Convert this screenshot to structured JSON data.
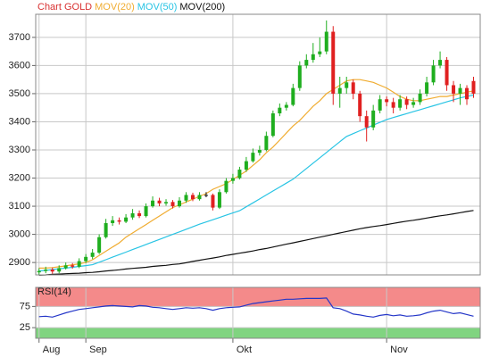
{
  "chart_data": [
    {
      "type": "candlestick",
      "xlim": [
        -0.5,
        66
      ],
      "xticks": [
        {
          "value": 0,
          "label": "Aug"
        },
        {
          "value": 7,
          "label": "Sep"
        },
        {
          "value": 29,
          "label": "Okt"
        },
        {
          "value": 52,
          "label": "Nov"
        }
      ],
      "ylim": [
        2856,
        3782
      ],
      "yticks": [
        2900,
        3000,
        3100,
        3200,
        3300,
        3400,
        3500,
        3600,
        3700
      ],
      "grid": true,
      "up_color": "#1fae1f",
      "down_color": "#e02020",
      "series": [
        {
          "name": "Chart GOLD",
          "color": "#d83030",
          "open": [
            2865,
            2870,
            2875,
            2868,
            2880,
            2890,
            2885,
            2905,
            2920,
            2935,
            2990,
            3040,
            3050,
            3045,
            3060,
            3075,
            3065,
            3100,
            3120,
            3110,
            3115,
            3100,
            3120,
            3140,
            3125,
            3140,
            3140,
            3095,
            3150,
            3190,
            3200,
            3230,
            3260,
            3290,
            3300,
            3350,
            3430,
            3450,
            3460,
            3520,
            3600,
            3620,
            3640,
            3650,
            3720,
            3500,
            3520,
            3540,
            3500,
            3420,
            3380,
            3440,
            3480,
            3470,
            3450,
            3480,
            3460,
            3470,
            3500,
            3540,
            3600,
            3620,
            3530,
            3500,
            3520,
            3545
          ],
          "high": [
            2880,
            2885,
            2882,
            2890,
            2900,
            2898,
            2915,
            2930,
            2948,
            3000,
            3055,
            3065,
            3060,
            3072,
            3090,
            3085,
            3110,
            3135,
            3130,
            3125,
            3122,
            3132,
            3150,
            3148,
            3150,
            3150,
            3145,
            3160,
            3200,
            3215,
            3240,
            3275,
            3305,
            3315,
            3365,
            3440,
            3465,
            3470,
            3535,
            3615,
            3640,
            3680,
            3700,
            3760,
            3740,
            3560,
            3560,
            3550,
            3510,
            3440,
            3460,
            3495,
            3490,
            3485,
            3495,
            3490,
            3485,
            3515,
            3560,
            3620,
            3650,
            3630,
            3545,
            3535,
            3530,
            3560
          ],
          "low": [
            2855,
            2862,
            2860,
            2862,
            2875,
            2878,
            2880,
            2898,
            2912,
            2930,
            2985,
            3030,
            3035,
            3040,
            3052,
            3058,
            3060,
            3095,
            3100,
            3102,
            3092,
            3095,
            3112,
            3118,
            3120,
            3132,
            3085,
            3090,
            3145,
            3180,
            3195,
            3222,
            3255,
            3280,
            3295,
            3345,
            3420,
            3440,
            3455,
            3510,
            3590,
            3610,
            3630,
            3640,
            3460,
            3450,
            3500,
            3480,
            3400,
            3330,
            3370,
            3430,
            3455,
            3430,
            3440,
            3445,
            3450,
            3460,
            3490,
            3530,
            3590,
            3510,
            3470,
            3460,
            3460,
            3485
          ],
          "close": [
            2870,
            2875,
            2868,
            2880,
            2890,
            2885,
            2905,
            2920,
            2935,
            2990,
            3040,
            3050,
            3045,
            3060,
            3075,
            3065,
            3100,
            3120,
            3110,
            3115,
            3100,
            3120,
            3140,
            3125,
            3140,
            3140,
            3095,
            3150,
            3190,
            3200,
            3230,
            3260,
            3290,
            3300,
            3350,
            3430,
            3450,
            3460,
            3520,
            3600,
            3620,
            3640,
            3650,
            3720,
            3500,
            3520,
            3540,
            3500,
            3420,
            3380,
            3440,
            3480,
            3470,
            3450,
            3480,
            3460,
            3470,
            3500,
            3540,
            3600,
            3620,
            3530,
            3500,
            3520,
            3480,
            3500
          ]
        }
      ],
      "overlays": [
        {
          "name": "MOV(20)",
          "color": "#f0ac30",
          "values": [
            2880,
            2880,
            2882,
            2885,
            2888,
            2892,
            2895,
            2900,
            2910,
            2925,
            2940,
            2955,
            2970,
            2990,
            3005,
            3020,
            3035,
            3050,
            3065,
            3080,
            3095,
            3105,
            3115,
            3125,
            3135,
            3145,
            3160,
            3170,
            3180,
            3195,
            3210,
            3225,
            3245,
            3265,
            3290,
            3310,
            3335,
            3360,
            3385,
            3405,
            3430,
            3455,
            3475,
            3500,
            3515,
            3530,
            3545,
            3550,
            3550,
            3545,
            3540,
            3530,
            3520,
            3505,
            3490,
            3480,
            3475,
            3475,
            3480,
            3485,
            3490,
            3490,
            3495,
            3500,
            3505,
            3510
          ]
        },
        {
          "name": "MOV(50)",
          "color": "#28c4e4",
          "values": [
            2870,
            2872,
            2875,
            2878,
            2880,
            2883,
            2886,
            2889,
            2892,
            2901,
            2910,
            2919,
            2928,
            2937,
            2946,
            2955,
            2964,
            2973,
            2982,
            2991,
            3000,
            3009,
            3018,
            3027,
            3036,
            3044,
            3052,
            3060,
            3068,
            3076,
            3084,
            3098,
            3112,
            3126,
            3140,
            3154,
            3168,
            3182,
            3196,
            3215,
            3234,
            3253,
            3272,
            3291,
            3310,
            3329,
            3348,
            3358,
            3368,
            3378,
            3388,
            3398,
            3408,
            3415,
            3422,
            3429,
            3436,
            3443,
            3450,
            3457,
            3464,
            3471,
            3478,
            3485,
            3490,
            3495
          ]
        },
        {
          "name": "MOV(200)",
          "color": "#111111",
          "values": [
            2855,
            2856,
            2858,
            2859,
            2860,
            2861,
            2862,
            2864,
            2865,
            2867,
            2870,
            2872,
            2874,
            2877,
            2879,
            2881,
            2883,
            2886,
            2888,
            2890,
            2893,
            2895,
            2899,
            2904,
            2908,
            2912,
            2916,
            2920,
            2925,
            2929,
            2933,
            2937,
            2941,
            2946,
            2950,
            2955,
            2960,
            2965,
            2970,
            2975,
            2980,
            2985,
            2990,
            2995,
            3000,
            3005,
            3010,
            3015,
            3020,
            3024,
            3028,
            3031,
            3035,
            3039,
            3043,
            3047,
            3050,
            3054,
            3058,
            3062,
            3066,
            3069,
            3073,
            3077,
            3081,
            3085
          ]
        }
      ]
    },
    {
      "type": "line",
      "ylim": [
        0,
        120
      ],
      "yticks": [
        25,
        75
      ],
      "zones": [
        {
          "from": 75,
          "to": 120,
          "color": "#f48a8a"
        },
        {
          "from": 0,
          "to": 25,
          "color": "#80d480"
        }
      ],
      "series": [
        {
          "name": "RSI(14)",
          "color": "#2436c8",
          "values": [
            51,
            52,
            50,
            55,
            60,
            64,
            68,
            70,
            72,
            74,
            76,
            77,
            76,
            75,
            74,
            77,
            76,
            73,
            72,
            70,
            68,
            70,
            72,
            71,
            72,
            70,
            66,
            70,
            72,
            73,
            74,
            78,
            82,
            84,
            86,
            88,
            90,
            92,
            92,
            93,
            94,
            94,
            94,
            95,
            72,
            70,
            64,
            57,
            55,
            52,
            50,
            54,
            56,
            53,
            55,
            52,
            53,
            55,
            60,
            64,
            66,
            62,
            58,
            60,
            56,
            52
          ]
        }
      ]
    }
  ]
}
